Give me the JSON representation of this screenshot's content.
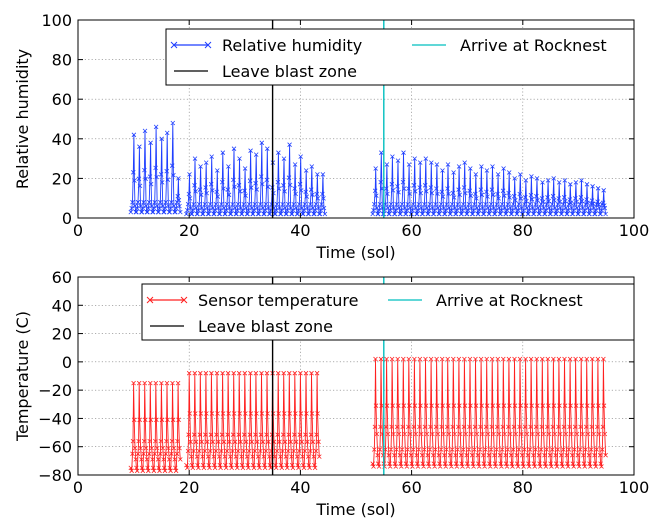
{
  "chart_data": [
    {
      "type": "line",
      "xlabel": "Time (sol)",
      "ylabel": "Relative humidity",
      "xlim": [
        0,
        100
      ],
      "ylim": [
        0,
        100
      ],
      "xticks": [
        0,
        20,
        40,
        60,
        80,
        100
      ],
      "yticks": [
        0,
        20,
        40,
        60,
        80,
        100
      ],
      "grid": true,
      "legend_position": "top",
      "series": [
        {
          "name": "Relative humidity",
          "color": "#1f3fff",
          "marker": "x",
          "style": "daily-spike",
          "x_range": [
            9.5,
            95
          ],
          "gap": [
            44,
            53
          ],
          "segments": [
            {
              "from": 9.5,
              "to": 18.5,
              "peaks": [
                42,
                36,
                44,
                38,
                46,
                40,
                43,
                48,
                20
              ],
              "base": 2
            },
            {
              "from": 19.5,
              "to": 44,
              "peaks": [
                22,
                30,
                26,
                28,
                31,
                24,
                33,
                26,
                35,
                30,
                25,
                34,
                32,
                38,
                35,
                28,
                33,
                30,
                37,
                27,
                31,
                24,
                26,
                22
              ],
              "base": 1
            },
            {
              "from": 53,
              "to": 95,
              "peaks": [
                25,
                33,
                27,
                31,
                29,
                33,
                27,
                30,
                28,
                30,
                28,
                27,
                24,
                27,
                23,
                26,
                28,
                25,
                22,
                26,
                24,
                26,
                22,
                25,
                23,
                20,
                22,
                19,
                21,
                20,
                18,
                19,
                20,
                18,
                19,
                17,
                18,
                19,
                17,
                16,
                15,
                14
              ],
              "base": 1
            }
          ]
        },
        {
          "name": "Leave blast zone",
          "color": "#000000",
          "style": "vline",
          "x": 35
        },
        {
          "name": "Arrive at Rocknest",
          "color": "#00bfbf",
          "style": "vline",
          "x": 55
        }
      ]
    },
    {
      "type": "line",
      "xlabel": "Time (sol)",
      "ylabel": "Temperature (C)",
      "xlim": [
        0,
        100
      ],
      "ylim": [
        -80,
        60
      ],
      "xticks": [
        0,
        20,
        40,
        60,
        80,
        100
      ],
      "yticks": [
        -80,
        -60,
        -40,
        -20,
        0,
        20,
        40,
        60
      ],
      "grid": true,
      "legend_position": "top",
      "series": [
        {
          "name": "Sensor temperature",
          "color": "#ff2020",
          "marker": "x",
          "style": "daily-cycle",
          "x_range": [
            9.5,
            95
          ],
          "gap": [
            43,
            53
          ],
          "segments": [
            {
              "from": 9.5,
              "to": 18.5,
              "high": -15,
              "low": -77
            },
            {
              "from": 19.5,
              "to": 43,
              "high": -8,
              "low": -75
            },
            {
              "from": 53,
              "to": 95,
              "high": 2,
              "low": -74
            }
          ]
        },
        {
          "name": "Leave blast zone",
          "color": "#000000",
          "style": "vline",
          "x": 35
        },
        {
          "name": "Arrive at Rocknest",
          "color": "#00bfbf",
          "style": "vline",
          "x": 55
        }
      ]
    }
  ]
}
